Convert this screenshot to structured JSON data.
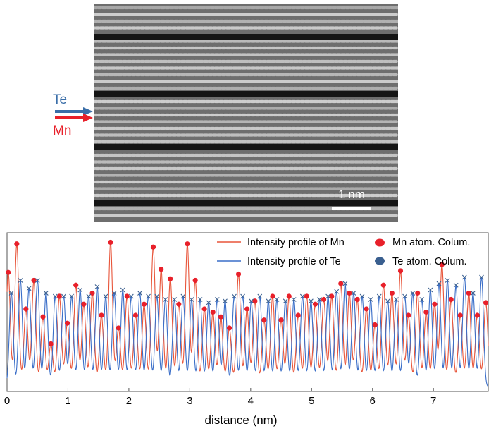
{
  "stem_image": {
    "label_te": "Te",
    "label_mn": "Mn",
    "scale_bar_label": "1 nm",
    "te_color": "#3a6ea8",
    "mn_color": "#e8202a"
  },
  "chart_data": {
    "type": "line",
    "xlabel": "distance (nm)",
    "ylabel": "",
    "xlim": [
      0,
      7.9
    ],
    "x_ticks": [
      "0",
      "1",
      "2",
      "3",
      "4",
      "5",
      "6",
      "7"
    ],
    "legend_position": "top-right",
    "legend": {
      "mn_line": "Intensity profile of Mn",
      "te_line": "Intensity profile of Te",
      "mn_marker": "Mn atom. Colum.",
      "te_marker": "Te atom. Colum."
    },
    "series": [
      {
        "name": "Intensity profile of Mn",
        "color": "#e8553a",
        "marker_color": "#e8202a",
        "marker": "dot",
        "peaks": [
          [
            0.02,
            0.75
          ],
          [
            0.16,
            0.93
          ],
          [
            0.31,
            0.52
          ],
          [
            0.44,
            0.7
          ],
          [
            0.59,
            0.47
          ],
          [
            0.72,
            0.3
          ],
          [
            0.86,
            0.6
          ],
          [
            0.99,
            0.43
          ],
          [
            1.13,
            0.67
          ],
          [
            1.26,
            0.55
          ],
          [
            1.4,
            0.62
          ],
          [
            1.55,
            0.48
          ],
          [
            1.7,
            0.94
          ],
          [
            1.83,
            0.4
          ],
          [
            1.97,
            0.6
          ],
          [
            2.11,
            0.48
          ],
          [
            2.25,
            0.55
          ],
          [
            2.4,
            0.91
          ],
          [
            2.53,
            0.77
          ],
          [
            2.68,
            0.71
          ],
          [
            2.82,
            0.55
          ],
          [
            2.96,
            0.93
          ],
          [
            3.09,
            0.7
          ],
          [
            3.24,
            0.52
          ],
          [
            3.38,
            0.5
          ],
          [
            3.51,
            0.47
          ],
          [
            3.65,
            0.4
          ],
          [
            3.8,
            0.74
          ],
          [
            3.94,
            0.52
          ],
          [
            4.07,
            0.57
          ],
          [
            4.22,
            0.45
          ],
          [
            4.36,
            0.6
          ],
          [
            4.5,
            0.45
          ],
          [
            4.63,
            0.6
          ],
          [
            4.78,
            0.48
          ],
          [
            4.92,
            0.6
          ],
          [
            5.06,
            0.55
          ],
          [
            5.2,
            0.58
          ],
          [
            5.33,
            0.6
          ],
          [
            5.48,
            0.68
          ],
          [
            5.62,
            0.62
          ],
          [
            5.75,
            0.58
          ],
          [
            5.9,
            0.52
          ],
          [
            6.04,
            0.42
          ],
          [
            6.18,
            0.67
          ],
          [
            6.32,
            0.62
          ],
          [
            6.46,
            0.76
          ],
          [
            6.59,
            0.48
          ],
          [
            6.74,
            0.62
          ],
          [
            6.88,
            0.5
          ],
          [
            7.02,
            0.55
          ],
          [
            7.14,
            0.8
          ],
          [
            7.29,
            0.58
          ],
          [
            7.44,
            0.48
          ],
          [
            7.58,
            0.62
          ],
          [
            7.72,
            0.48
          ],
          [
            7.86,
            0.56
          ]
        ]
      },
      {
        "name": "Intensity profile of Te",
        "color": "#3a6ec8",
        "marker_color": "#3a5f8f",
        "marker": "x",
        "peaks": [
          [
            0.07,
            0.62
          ],
          [
            0.22,
            0.7
          ],
          [
            0.36,
            0.65
          ],
          [
            0.5,
            0.7
          ],
          [
            0.64,
            0.62
          ],
          [
            0.79,
            0.6
          ],
          [
            0.93,
            0.6
          ],
          [
            1.06,
            0.6
          ],
          [
            1.2,
            0.64
          ],
          [
            1.34,
            0.6
          ],
          [
            1.48,
            0.66
          ],
          [
            1.62,
            0.6
          ],
          [
            1.76,
            0.62
          ],
          [
            1.9,
            0.64
          ],
          [
            2.04,
            0.6
          ],
          [
            2.18,
            0.62
          ],
          [
            2.32,
            0.6
          ],
          [
            2.46,
            0.6
          ],
          [
            2.6,
            0.58
          ],
          [
            2.75,
            0.58
          ],
          [
            2.89,
            0.6
          ],
          [
            3.03,
            0.58
          ],
          [
            3.17,
            0.58
          ],
          [
            3.31,
            0.56
          ],
          [
            3.45,
            0.58
          ],
          [
            3.58,
            0.57
          ],
          [
            3.73,
            0.6
          ],
          [
            3.87,
            0.6
          ],
          [
            4.01,
            0.57
          ],
          [
            4.15,
            0.6
          ],
          [
            4.29,
            0.57
          ],
          [
            4.43,
            0.58
          ],
          [
            4.57,
            0.57
          ],
          [
            4.71,
            0.58
          ],
          [
            4.85,
            0.6
          ],
          [
            4.99,
            0.57
          ],
          [
            5.13,
            0.58
          ],
          [
            5.27,
            0.6
          ],
          [
            5.41,
            0.63
          ],
          [
            5.55,
            0.68
          ],
          [
            5.69,
            0.62
          ],
          [
            5.83,
            0.6
          ],
          [
            5.97,
            0.58
          ],
          [
            6.11,
            0.6
          ],
          [
            6.25,
            0.57
          ],
          [
            6.39,
            0.58
          ],
          [
            6.53,
            0.6
          ],
          [
            6.66,
            0.62
          ],
          [
            6.81,
            0.58
          ],
          [
            6.95,
            0.64
          ],
          [
            7.09,
            0.68
          ],
          [
            7.23,
            0.7
          ],
          [
            7.37,
            0.67
          ],
          [
            7.51,
            0.72
          ],
          [
            7.65,
            0.62
          ],
          [
            7.79,
            0.72
          ]
        ]
      }
    ]
  }
}
